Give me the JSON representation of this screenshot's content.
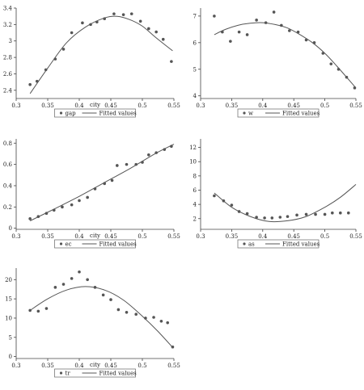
{
  "chart_data": [
    {
      "type": "scatter",
      "xlabel": "city",
      "ylabel": "",
      "xlim": [
        0.3,
        0.55
      ],
      "ylim": [
        2.3,
        3.4
      ],
      "xticks": [
        "0.3",
        "0.35",
        "0.4",
        "0.45",
        "0.5",
        "0.55"
      ],
      "yticks": [
        "2.4",
        "2.6",
        "2.8",
        "3",
        "3.2",
        "3.4"
      ],
      "ytick_values": [
        2.4,
        2.6,
        2.8,
        3.0,
        3.2,
        3.4
      ],
      "legend": [
        "gap",
        "Fitted  values"
      ],
      "series": [
        {
          "name": "gap",
          "x": [
            0.322,
            0.333,
            0.347,
            0.362,
            0.375,
            0.388,
            0.405,
            0.418,
            0.428,
            0.44,
            0.455,
            0.47,
            0.483,
            0.497,
            0.51,
            0.522,
            0.533,
            0.546
          ],
          "y": [
            2.47,
            2.51,
            2.65,
            2.78,
            2.9,
            3.1,
            3.22,
            3.2,
            3.23,
            3.27,
            3.33,
            3.32,
            3.33,
            3.24,
            3.15,
            3.11,
            3.02,
            2.75
          ]
        },
        {
          "name": "Fitted  values",
          "x": [
            0.322,
            0.35,
            0.38,
            0.41,
            0.44,
            0.46,
            0.48,
            0.5,
            0.52,
            0.548
          ],
          "y": [
            2.36,
            2.67,
            2.98,
            3.17,
            3.28,
            3.3,
            3.26,
            3.18,
            3.05,
            2.88
          ]
        }
      ]
    },
    {
      "type": "scatter",
      "xlabel": "",
      "ylabel": "",
      "xlim": [
        0.3,
        0.55
      ],
      "ylim": [
        3.9,
        7.3
      ],
      "xticks": [
        "0.3",
        "0.35",
        "0.4",
        "0.45",
        "0.5",
        "0.55"
      ],
      "yticks": [
        "4",
        "5",
        "6",
        "7"
      ],
      "ytick_values": [
        4,
        5,
        6,
        7
      ],
      "legend": [
        "w",
        "Fitted  values"
      ],
      "series": [
        {
          "name": "w",
          "x": [
            0.322,
            0.335,
            0.348,
            0.362,
            0.375,
            0.39,
            0.405,
            0.418,
            0.43,
            0.443,
            0.457,
            0.47,
            0.483,
            0.497,
            0.51,
            0.522,
            0.535,
            0.548
          ],
          "y": [
            7.0,
            6.4,
            6.05,
            6.4,
            6.3,
            6.85,
            6.75,
            7.15,
            6.65,
            6.45,
            6.4,
            6.1,
            6.0,
            5.6,
            5.2,
            5.0,
            4.7,
            4.3
          ]
        },
        {
          "name": "Fitted  values",
          "x": [
            0.322,
            0.34,
            0.36,
            0.38,
            0.4,
            0.42,
            0.44,
            0.46,
            0.48,
            0.5,
            0.52,
            0.548
          ],
          "y": [
            6.3,
            6.5,
            6.65,
            6.73,
            6.75,
            6.68,
            6.55,
            6.3,
            6.0,
            5.6,
            5.1,
            4.35
          ]
        }
      ]
    },
    {
      "type": "scatter",
      "xlabel": "city",
      "ylabel": "",
      "xlim": [
        0.3,
        0.55
      ],
      "ylim": [
        -0.01,
        0.84
      ],
      "xticks": [
        "0.3",
        "0.35",
        "0.4",
        "0.45",
        "0.5",
        "0.55"
      ],
      "yticks": [
        "0",
        "0.2",
        "0.4",
        "0.6",
        "0.8"
      ],
      "ytick_values": [
        0,
        0.2,
        0.4,
        0.6,
        0.8
      ],
      "legend": [
        "ec",
        "Fitted  values"
      ],
      "series": [
        {
          "name": "ec",
          "x": [
            0.322,
            0.335,
            0.348,
            0.36,
            0.373,
            0.388,
            0.4,
            0.413,
            0.425,
            0.44,
            0.452,
            0.46,
            0.475,
            0.49,
            0.5,
            0.51,
            0.522,
            0.535,
            0.546
          ],
          "y": [
            0.09,
            0.11,
            0.14,
            0.17,
            0.2,
            0.22,
            0.26,
            0.29,
            0.37,
            0.42,
            0.45,
            0.59,
            0.6,
            0.6,
            0.62,
            0.69,
            0.71,
            0.74,
            0.77
          ]
        },
        {
          "name": "Fitted  values",
          "x": [
            0.322,
            0.36,
            0.4,
            0.44,
            0.48,
            0.52,
            0.55
          ],
          "y": [
            0.07,
            0.18,
            0.3,
            0.43,
            0.56,
            0.7,
            0.79
          ]
        }
      ]
    },
    {
      "type": "scatter",
      "xlabel": "",
      "ylabel": "",
      "xlim": [
        0.3,
        0.55
      ],
      "ylim": [
        0.5,
        13.2
      ],
      "xticks": [
        "0.3",
        "0.35",
        "0.4",
        "0.45",
        "0.5",
        "0.55"
      ],
      "yticks": [
        "2",
        "4",
        "6",
        "8",
        "10",
        "12"
      ],
      "ytick_values": [
        2,
        4,
        6,
        8,
        10,
        12
      ],
      "legend": [
        "as",
        "Fitted  values"
      ],
      "series": [
        {
          "name": "as",
          "x": [
            0.322,
            0.337,
            0.35,
            0.362,
            0.375,
            0.39,
            0.403,
            0.415,
            0.428,
            0.44,
            0.455,
            0.47,
            0.485,
            0.5,
            0.512,
            0.525,
            0.538
          ],
          "y": [
            5.2,
            4.5,
            3.9,
            3.0,
            2.7,
            2.2,
            2.1,
            2.1,
            2.2,
            2.3,
            2.5,
            2.6,
            2.6,
            2.6,
            2.8,
            2.8,
            2.8
          ]
        },
        {
          "name": "Fitted  values",
          "x": [
            0.322,
            0.35,
            0.38,
            0.41,
            0.44,
            0.47,
            0.5,
            0.525,
            0.55
          ],
          "y": [
            5.6,
            3.6,
            2.3,
            1.6,
            1.7,
            2.3,
            3.6,
            5.0,
            6.8
          ]
        }
      ]
    },
    {
      "type": "scatter",
      "xlabel": "city",
      "ylabel": "",
      "xlim": [
        0.3,
        0.55
      ],
      "ylim": [
        -0.5,
        23
      ],
      "xticks": [
        "0.3",
        "0.35",
        "0.4",
        "0.45",
        "0.5",
        "0.55"
      ],
      "yticks": [
        "0",
        "5",
        "10",
        "15",
        "20"
      ],
      "ytick_values": [
        0,
        5,
        10,
        15,
        20
      ],
      "legend": [
        "tr",
        "Fitted  values"
      ],
      "series": [
        {
          "name": "tr",
          "x": [
            0.322,
            0.335,
            0.348,
            0.362,
            0.375,
            0.388,
            0.4,
            0.413,
            0.425,
            0.438,
            0.45,
            0.462,
            0.475,
            0.49,
            0.505,
            0.518,
            0.53,
            0.54,
            0.548
          ],
          "y": [
            12.0,
            11.8,
            12.5,
            18.0,
            18.8,
            20.3,
            22.0,
            20.0,
            18.0,
            16.0,
            14.8,
            12.2,
            11.5,
            11.0,
            10.0,
            10.2,
            9.2,
            8.8,
            2.5
          ]
        },
        {
          "name": "Fitted  values",
          "x": [
            0.322,
            0.35,
            0.38,
            0.41,
            0.44,
            0.47,
            0.5,
            0.525,
            0.548
          ],
          "y": [
            12.0,
            15.0,
            17.3,
            18.2,
            17.3,
            14.7,
            10.5,
            6.5,
            2.4
          ]
        }
      ]
    }
  ]
}
